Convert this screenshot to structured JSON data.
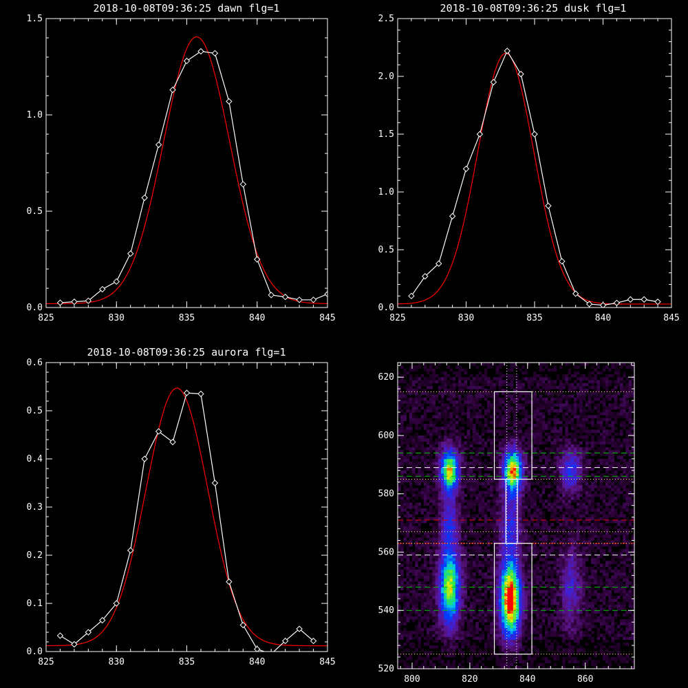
{
  "chart_data": [
    {
      "type": "line",
      "title": "2018-10-08T09:36:25 dawn flg=1",
      "xlim": [
        825,
        845
      ],
      "ylim": [
        0,
        1.5
      ],
      "xticks": [
        825,
        830,
        835,
        840,
        845
      ],
      "yticks": [
        0.0,
        0.5,
        1.0,
        1.5
      ],
      "ytick_labels": [
        "0.0",
        "0.5",
        "1.0",
        "1.5"
      ],
      "colors": {
        "data": "#ffffff",
        "fit": "#ff0000"
      },
      "series": [
        {
          "marker": "diamond",
          "x": [
            826,
            827,
            828,
            829,
            830,
            831,
            832,
            833,
            834,
            835,
            836,
            837,
            838,
            839,
            840,
            841,
            842,
            843,
            844,
            845
          ],
          "y": [
            0.025,
            0.03,
            0.035,
            0.095,
            0.135,
            0.28,
            0.57,
            0.845,
            1.13,
            1.28,
            1.33,
            1.32,
            1.07,
            0.64,
            0.25,
            0.065,
            0.055,
            0.04,
            0.04,
            0.07
          ]
        },
        {
          "gaussian": {
            "amplitude": 1.385,
            "center": 835.7,
            "sigma": 2.35,
            "offset": 0.02
          }
        }
      ]
    },
    {
      "type": "line",
      "title": "2018-10-08T09:36:25 dusk flg=1",
      "xlim": [
        825,
        845
      ],
      "ylim": [
        0,
        2.5
      ],
      "xticks": [
        825,
        830,
        835,
        840,
        845
      ],
      "yticks": [
        0.0,
        0.5,
        1.0,
        1.5,
        2.0,
        2.5
      ],
      "ytick_labels": [
        "0.0",
        "0.5",
        "1.0",
        "1.5",
        "2.0",
        "2.5"
      ],
      "colors": {
        "data": "#ffffff",
        "fit": "#ff0000"
      },
      "series": [
        {
          "marker": "diamond",
          "x": [
            826,
            827,
            828,
            829,
            830,
            831,
            832,
            833,
            834,
            835,
            836,
            837,
            838,
            839,
            840,
            841,
            842,
            843,
            844
          ],
          "y": [
            0.1,
            0.27,
            0.38,
            0.79,
            1.2,
            1.5,
            1.95,
            2.22,
            2.02,
            1.5,
            0.88,
            0.4,
            0.12,
            0.03,
            0.02,
            0.04,
            0.07,
            0.07,
            0.05
          ]
        },
        {
          "gaussian": {
            "amplitude": 2.17,
            "center": 832.9,
            "sigma": 2.05,
            "offset": 0.03
          }
        }
      ]
    },
    {
      "type": "line",
      "title": "2018-10-08T09:36:25 aurora flg=1",
      "xlim": [
        825,
        845
      ],
      "ylim": [
        0,
        0.6
      ],
      "xticks": [
        825,
        830,
        835,
        840,
        845
      ],
      "yticks": [
        0.0,
        0.1,
        0.2,
        0.3,
        0.4,
        0.5,
        0.6
      ],
      "ytick_labels": [
        "0.0",
        "0.1",
        "0.2",
        "0.3",
        "0.4",
        "0.5",
        "0.6"
      ],
      "colors": {
        "data": "#ffffff",
        "fit": "#ff0000"
      },
      "series": [
        {
          "marker": "diamond",
          "x": [
            826,
            827,
            828,
            829,
            830,
            831,
            832,
            833,
            834,
            835,
            836,
            837,
            838,
            839,
            840,
            841,
            842,
            843,
            844
          ],
          "y": [
            0.033,
            0.015,
            0.04,
            0.065,
            0.1,
            0.21,
            0.4,
            0.457,
            0.435,
            0.537,
            0.535,
            0.35,
            0.145,
            0.055,
            0.005,
            -0.005,
            0.022,
            0.047,
            0.022
          ]
        },
        {
          "gaussian": {
            "amplitude": 0.535,
            "center": 834.3,
            "sigma": 2.2,
            "offset": 0.012
          }
        }
      ]
    },
    {
      "type": "heatmap",
      "xlim": [
        795,
        877
      ],
      "ylim": [
        520,
        625
      ],
      "xticks": [
        800,
        820,
        840,
        860
      ],
      "yticks": [
        520,
        540,
        560,
        580,
        600,
        620
      ],
      "blobs": [
        {
          "x": 813,
          "y": 548,
          "sx": 2.5,
          "sy": 9,
          "a": 0.75
        },
        {
          "x": 813,
          "y": 588,
          "sx": 2.2,
          "sy": 5,
          "a": 0.8
        },
        {
          "x": 813,
          "y": 570,
          "sx": 2.2,
          "sy": 6,
          "a": 0.3
        },
        {
          "x": 834,
          "y": 544,
          "sx": 2.5,
          "sy": 9,
          "a": 1.0
        },
        {
          "x": 835,
          "y": 588,
          "sx": 2.2,
          "sy": 5,
          "a": 0.85
        },
        {
          "x": 834,
          "y": 570,
          "sx": 2.5,
          "sy": 8,
          "a": 0.3
        },
        {
          "x": 855,
          "y": 548,
          "sx": 2.5,
          "sy": 10,
          "a": 0.25
        },
        {
          "x": 855,
          "y": 588,
          "sx": 2.5,
          "sy": 5,
          "a": 0.35
        }
      ],
      "boxes": [
        {
          "x0": 828.5,
          "x1": 841.5,
          "y0": 525,
          "y1": 563
        },
        {
          "x0": 828.5,
          "x1": 841.5,
          "y0": 585,
          "y1": 615
        },
        {
          "x0": 832.5,
          "x1": 836.5,
          "y0": 563,
          "y1": 585
        }
      ],
      "hlines": [
        {
          "y": 594,
          "color": "#00c000",
          "dash": "dashed"
        },
        {
          "y": 586,
          "color": "#00c000",
          "dash": "dashed"
        },
        {
          "y": 589,
          "color": "#ffffff",
          "dash": "dashed"
        },
        {
          "y": 571,
          "color": "#e00000",
          "dash": "dashed"
        },
        {
          "y": 563,
          "color": "#e00000",
          "dash": "dashed"
        },
        {
          "y": 559,
          "color": "#ffffff",
          "dash": "dashed"
        },
        {
          "y": 548,
          "color": "#00c000",
          "dash": "dashed"
        },
        {
          "y": 540,
          "color": "#00c000",
          "dash": "dashed"
        },
        {
          "y": 615,
          "color": "#ffff60",
          "dash": "dotted"
        },
        {
          "y": 585,
          "color": "#ffff60",
          "dash": "dotted"
        },
        {
          "y": 567,
          "color": "#ffff60",
          "dash": "dotted"
        },
        {
          "y": 563,
          "color": "#ffff60",
          "dash": "dotted"
        },
        {
          "y": 525,
          "color": "#ffff60",
          "dash": "dotted"
        }
      ],
      "vlines": [
        {
          "x": 832.8,
          "color": "#ffffff",
          "dash": "dotted"
        },
        {
          "x": 836.2,
          "color": "#ffffff",
          "dash": "dotted"
        }
      ]
    }
  ]
}
